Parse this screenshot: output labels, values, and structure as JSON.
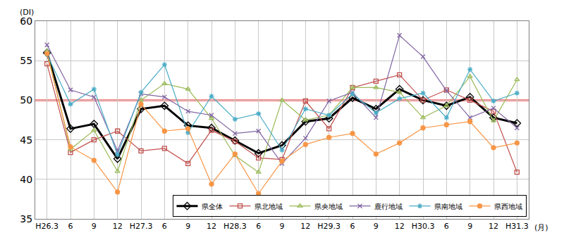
{
  "chart_data": {
    "type": "line",
    "y_label": "(DI)",
    "x_label": "(月)",
    "categories": [
      "H26.3",
      "6",
      "9",
      "12",
      "H27.3",
      "6",
      "9",
      "12",
      "H28.3",
      "6",
      "9",
      "12",
      "H29.3",
      "6",
      "9",
      "12",
      "H30.3",
      "6",
      "9",
      "12",
      "H31.3"
    ],
    "ylim": [
      35,
      60
    ],
    "yticks": [
      35,
      40,
      45,
      50,
      55,
      60
    ],
    "grid": true,
    "legend": "lower right",
    "reference_line": {
      "value": 50,
      "color": "#ff0000"
    },
    "series": [
      {
        "name": "県全体",
        "color": "#000000",
        "marker": "diamond-open",
        "values": [
          56.0,
          46.4,
          47.0,
          42.6,
          48.9,
          49.3,
          46.8,
          46.5,
          44.9,
          43.3,
          44.3,
          47.3,
          47.7,
          50.3,
          48.9,
          51.4,
          50.0,
          49.3,
          50.4,
          47.8,
          47.1
        ]
      },
      {
        "name": "県北地域",
        "color": "#c0504d",
        "marker": "square-open",
        "values": [
          54.6,
          43.4,
          45.0,
          46.1,
          43.6,
          43.9,
          42.0,
          46.2,
          44.8,
          42.7,
          42.5,
          49.9,
          46.4,
          51.6,
          52.4,
          53.2,
          50.0,
          51.3,
          50.0,
          48.6,
          40.9
        ]
      },
      {
        "name": "県央地域",
        "color": "#9bbb59",
        "marker": "triangle-up-open",
        "values": [
          56.2,
          43.8,
          46.2,
          41.0,
          50.0,
          52.1,
          51.4,
          47.7,
          43.0,
          40.9,
          50.0,
          47.5,
          48.1,
          51.6,
          51.6,
          51.0,
          47.8,
          49.3,
          53.0,
          47.4,
          52.6
        ]
      },
      {
        "name": "鹿行地域",
        "color": "#8064a2",
        "marker": "x-thin-open",
        "values": [
          57.0,
          51.3,
          50.4,
          43.6,
          50.8,
          50.4,
          48.6,
          48.1,
          45.8,
          46.1,
          42.0,
          45.2,
          49.9,
          51.0,
          47.8,
          58.2,
          55.5,
          51.2,
          47.8,
          49.0,
          46.5
        ]
      },
      {
        "name": "県南地域",
        "color": "#4bacc6",
        "marker": "asterisk-open",
        "values": [
          55.8,
          49.5,
          51.4,
          43.1,
          51.0,
          54.5,
          45.9,
          50.5,
          47.6,
          48.3,
          43.7,
          48.9,
          48.1,
          50.8,
          48.4,
          50.2,
          50.9,
          47.8,
          53.9,
          49.9,
          50.9
        ]
      },
      {
        "name": "県西地域",
        "color": "#f79646",
        "marker": "circle",
        "values": [
          55.9,
          44.1,
          42.4,
          38.4,
          49.5,
          46.1,
          46.4,
          39.4,
          43.2,
          38.2,
          42.3,
          44.4,
          45.3,
          45.8,
          43.2,
          44.6,
          46.5,
          46.9,
          47.3,
          44.0,
          44.6
        ]
      }
    ]
  }
}
